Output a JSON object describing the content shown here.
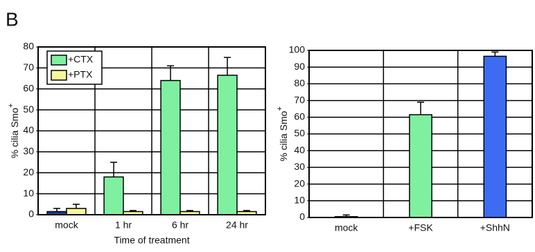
{
  "panel_label": "B",
  "chart_data": [
    {
      "type": "bar",
      "ylabel": "% cilia Smo",
      "ylabel_sup": "+",
      "xlabel": "Time of treatment",
      "categories": [
        "mock",
        "1 hr",
        "6 hr",
        "24 hr"
      ],
      "series": [
        {
          "name": "+CTX",
          "color": "#7ef0a0",
          "colors": [
            "#1f3a93",
            "#7ef0a0",
            "#7ef0a0",
            "#7ef0a0"
          ],
          "values": [
            1.5,
            18,
            64,
            66.5
          ],
          "errors": [
            1.5,
            7,
            7,
            8.5
          ]
        },
        {
          "name": "+PTX",
          "color": "#f6f79a",
          "values": [
            3,
            1.5,
            1.5,
            1.5
          ],
          "errors": [
            2,
            0.5,
            0.5,
            0.5
          ]
        }
      ],
      "ylim": [
        0,
        80
      ],
      "yticks": [
        0,
        10,
        20,
        30,
        40,
        50,
        60,
        70,
        80
      ],
      "grid": true,
      "legend": "upper left"
    },
    {
      "type": "bar",
      "ylabel": "% cilia Smo",
      "ylabel_sup": "+",
      "categories": [
        "mock",
        "+FSK",
        "+ShhN"
      ],
      "series": [
        {
          "colors": [
            "#1f3a93",
            "#7ef0a0",
            "#3d6cf2"
          ],
          "values": [
            0.5,
            61.5,
            96.5
          ],
          "errors": [
            1,
            7.5,
            2.5
          ]
        }
      ],
      "ylim": [
        0,
        100
      ],
      "yticks": [
        0,
        10,
        20,
        30,
        40,
        50,
        60,
        70,
        80,
        90,
        100
      ],
      "grid": true
    }
  ]
}
